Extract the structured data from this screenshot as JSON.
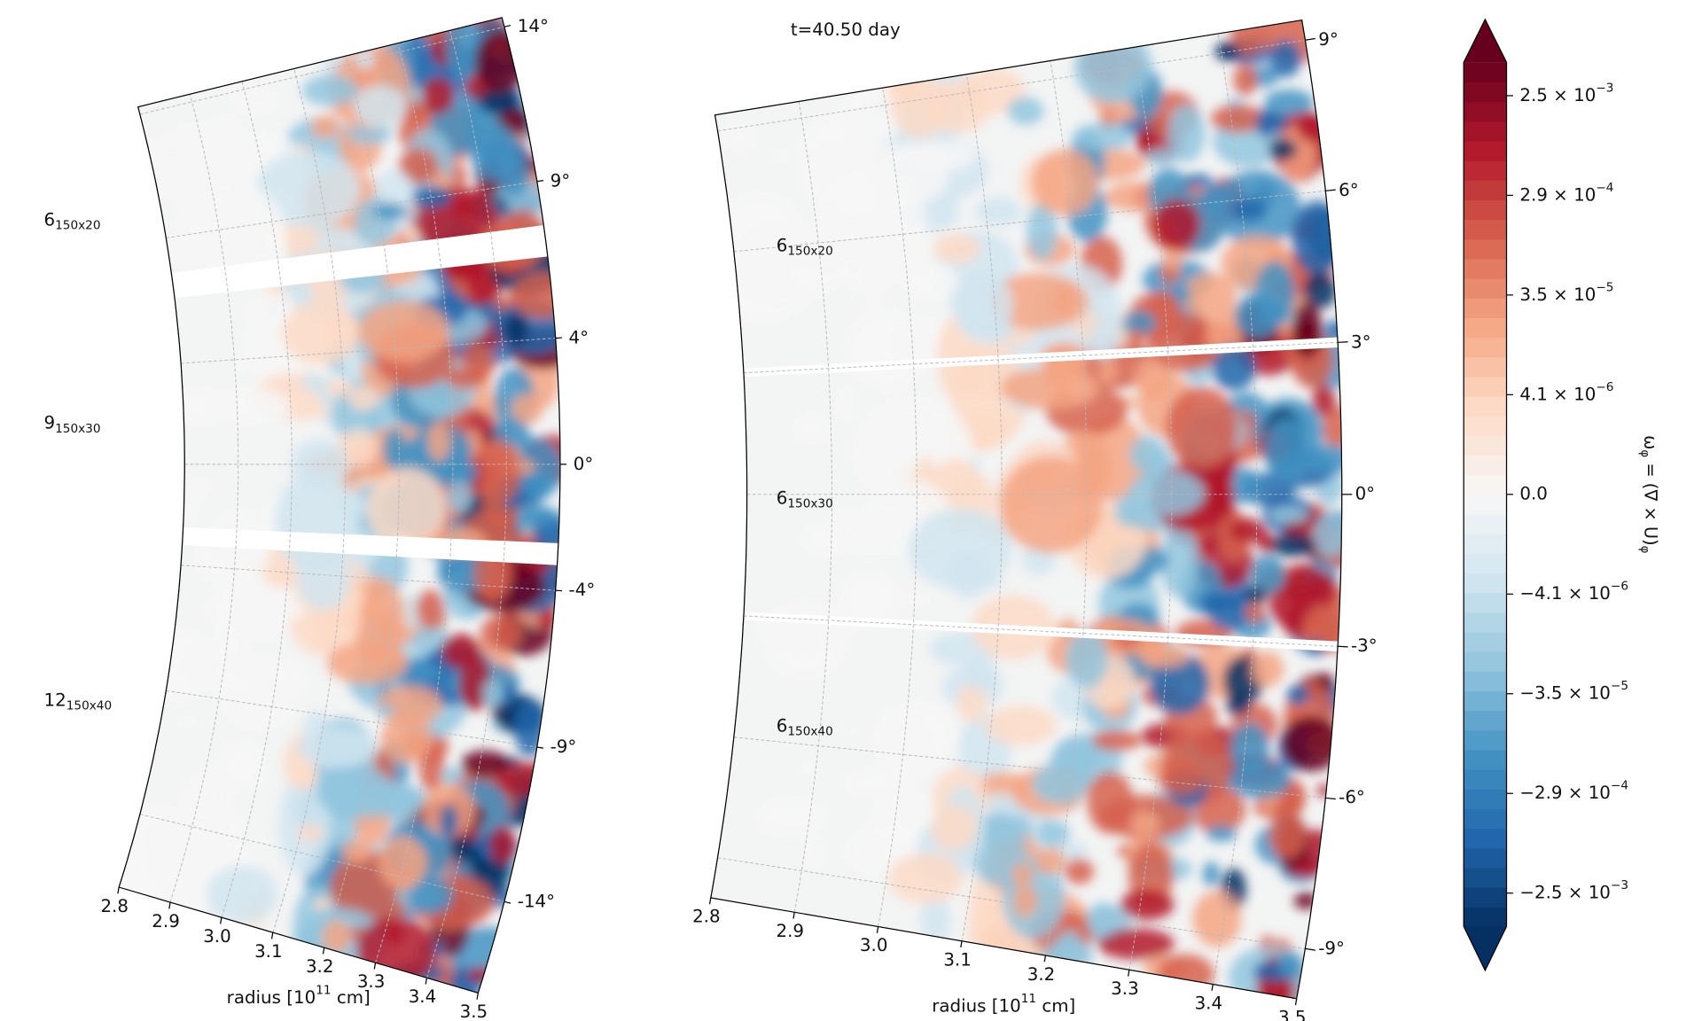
{
  "chart_data": [
    {
      "type": "polar_wedge",
      "xlabel": "radius [10^11 cm]",
      "rlim": [
        2.8,
        3.5
      ],
      "rticks": [
        2.8,
        2.9,
        {
          "value": 3,
          "label": "3.0"
        },
        3.1,
        3.2,
        3.3,
        3.4,
        3.5
      ],
      "thetalim": [
        -17,
        14.3
      ],
      "thetaticks": [
        {
          "value": 14,
          "label": "14°"
        },
        {
          "value": 9,
          "label": "9°"
        },
        {
          "value": 4,
          "label": "4°"
        },
        {
          "value": 0,
          "label": "0°"
        },
        {
          "value": -4,
          "label": "-4°"
        },
        {
          "value": -9,
          "label": "-9°"
        },
        {
          "value": -14,
          "label": "-14°"
        }
      ],
      "annotations": [
        "6_150x20",
        "9_150x30",
        "12_150x40"
      ],
      "grid": true
    },
    {
      "type": "polar_wedge",
      "title": "t=40.50 day",
      "xlabel": "radius [10^11 cm]",
      "rlim": [
        2.8,
        3.5
      ],
      "rticks": [
        2.8,
        2.9,
        {
          "value": 3,
          "label": "3.0"
        },
        3.1,
        3.2,
        3.3,
        3.4,
        3.5
      ],
      "thetalim": [
        -10,
        9.4
      ],
      "thetaticks": [
        {
          "value": 9,
          "label": "9°"
        },
        {
          "value": 6,
          "label": "6°"
        },
        {
          "value": 3,
          "label": "3°"
        },
        {
          "value": 0,
          "label": "0°"
        },
        {
          "value": -3,
          "label": "-3°"
        },
        {
          "value": -6,
          "label": "-6°"
        },
        {
          "value": -9,
          "label": "-9°"
        }
      ],
      "annotations": [
        "6_150x20",
        "6_150x30",
        "6_150x40"
      ],
      "grid": true
    },
    {
      "type": "colorbar",
      "label": "ω_φ = (∇ × U)_φ",
      "extend": "both",
      "colors": [
        "#053061",
        "#2166ac",
        "#4393c3",
        "#92c5de",
        "#d1e5f0",
        "#f7f7f7",
        "#fddbc7",
        "#f4a582",
        "#d6604d",
        "#b2182b",
        "#67001f"
      ],
      "ticks": [
        {
          "value": -0.0025,
          "label": "−2.5 × 10^−3"
        },
        {
          "value": -0.00029,
          "label": "−2.9 × 10^−4"
        },
        {
          "value": -3.5e-05,
          "label": "−3.5 × 10^−5"
        },
        {
          "value": -4.1e-06,
          "label": "−4.1 × 10^−6"
        },
        {
          "value": 0,
          "label": "0.0"
        },
        {
          "value": 4.1e-06,
          "label": "4.1 × 10^−6"
        },
        {
          "value": 3.5e-05,
          "label": "3.5 × 10^−5"
        },
        {
          "value": 0.00029,
          "label": "2.9 × 10^−4"
        },
        {
          "value": 0.0025,
          "label": "2.5 × 10^−3"
        }
      ]
    }
  ]
}
